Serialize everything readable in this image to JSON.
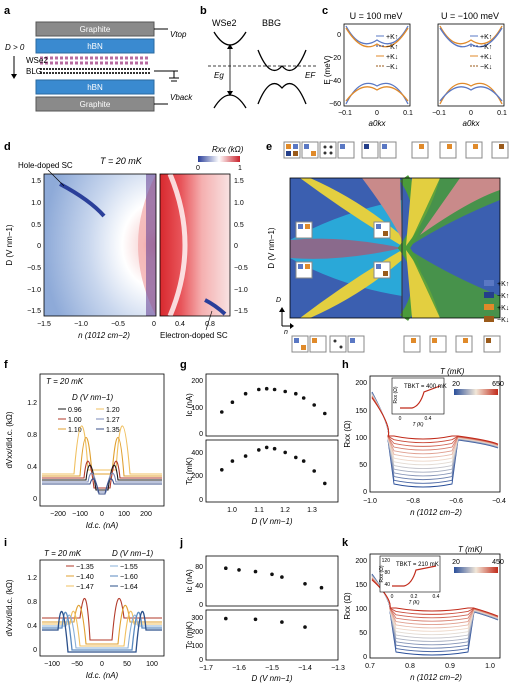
{
  "panel_letters": {
    "a": "a",
    "b": "b",
    "c": "c",
    "d": "d",
    "e": "e",
    "f": "f",
    "g": "g",
    "h": "h",
    "i": "i",
    "j": "j",
    "k": "k"
  },
  "panel_a": {
    "layers": [
      "Graphite",
      "hBN",
      "WSe2",
      "BLG",
      "hBN",
      "Graphite"
    ],
    "v_top": "Vtop",
    "v_back": "Vback",
    "d_label": "D > 0"
  },
  "panel_b": {
    "left": "WSe2",
    "right": "BBG",
    "eg": "Eg",
    "ef": "EF"
  },
  "panel_c": {
    "titles": [
      "U = 100 meV",
      "U = −100 meV"
    ],
    "ylabel": "E (meV)",
    "xlabel": "a0kx",
    "yticks": [
      "0",
      "−20",
      "−40",
      "−60"
    ],
    "xticks": [
      "−0.1",
      "0",
      "0.1"
    ],
    "legend": [
      "+K↑",
      "−K↑",
      "+K↓",
      "−K↓"
    ]
  },
  "panel_d": {
    "temperature": "T = 20 mK",
    "cbar_label": "Rxx (kΩ)",
    "cbar_ticks": [
      "0",
      "1"
    ],
    "ylabel": "D (V nm−1)",
    "xlabel": "n (1012 cm−2)",
    "yticks": [
      "1.5",
      "1.0",
      "0.5",
      "0",
      "−0.5",
      "−1.0",
      "−1.5"
    ],
    "xticks": [
      "−1.5",
      "−1.0",
      "−0.5",
      "0",
      "0.4",
      "0.8"
    ],
    "ann_hole": "Hole-doped SC",
    "ann_electron": "Electron-doped SC"
  },
  "panel_e": {
    "ylabel": "D (V nm−1)",
    "axis_d": "D",
    "axis_n": "n",
    "legend": [
      "+K↑",
      "−K↑",
      "+K↓",
      "−K↓"
    ]
  },
  "panel_f": {
    "temperature": "T = 20 mK",
    "legend_title": "D (V nm−1)",
    "legend": [
      "0.96",
      "1.00",
      "1.10",
      "1.20",
      "1.27",
      "1.35"
    ],
    "ylabel": "dVxx/dId.c. (kΩ)",
    "xlabel": "Id.c. (nA)",
    "yticks": [
      "1.2",
      "0.8",
      "0.4",
      "0"
    ],
    "xticks": [
      "−200",
      "−100",
      "0",
      "100",
      "200"
    ]
  },
  "panel_g": {
    "ylabel_top": "Ic (nA)",
    "ylabel_bottom": "Tc (mK)",
    "xlabel": "D (V nm−1)",
    "yticks_top": [
      "200",
      "100",
      "0"
    ],
    "yticks_bottom": [
      "400",
      "200",
      "0"
    ],
    "xticks": [
      "1.0",
      "1.1",
      "1.2",
      "1.3"
    ]
  },
  "panel_h": {
    "cbar_label": "T (mK)",
    "cbar_ticks": [
      "20",
      "650"
    ],
    "ylabel": "Rxx (Ω)",
    "xlabel": "n (1012 cm−2)",
    "yticks": [
      "200",
      "150",
      "100",
      "50",
      "0"
    ],
    "xticks": [
      "−1.0",
      "−0.8",
      "−0.6",
      "−0.4"
    ],
    "inset_text": "TBKT = 400 mK",
    "inset_ylabel": "Rxx (Ω)",
    "inset_xlabel": "T (K)",
    "inset_xticks": [
      "0",
      "0.4"
    ]
  },
  "panel_i": {
    "temperature": "T = 20 mK",
    "legend_title": "D (V nm−1)",
    "legend": [
      "−1.35",
      "−1.40",
      "−1.47",
      "−1.55",
      "−1.60",
      "−1.64"
    ],
    "ylabel": "dVxx/dId.c. (kΩ)",
    "xlabel": "Id.c. (nA)",
    "yticks": [
      "1.2",
      "0.8",
      "0.4",
      "0"
    ],
    "xticks": [
      "−100",
      "−50",
      "0",
      "50",
      "100"
    ]
  },
  "panel_j": {
    "ylabel_top": "Ic (nA)",
    "ylabel_bottom": "Tc (mK)",
    "xlabel": "D (V nm−1)",
    "yticks_top": [
      "80",
      "40",
      "0"
    ],
    "yticks_bottom": [
      "300",
      "200",
      "100",
      "0"
    ],
    "xticks": [
      "−1.7",
      "−1.6",
      "−1.5",
      "−1.4",
      "−1.3"
    ]
  },
  "panel_k": {
    "cbar_label": "T (mK)",
    "cbar_ticks": [
      "20",
      "450"
    ],
    "ylabel": "Rxx (Ω)",
    "xlabel": "n (1012 cm−2)",
    "yticks": [
      "200",
      "150",
      "100",
      "50",
      "0"
    ],
    "xticks": [
      "0.7",
      "0.8",
      "0.9",
      "1.0"
    ],
    "inset_text": "TBKT = 210 mK",
    "inset_ylabel": "Rxx (Ω)",
    "inset_xlabel": "T (K)",
    "inset_yticks": [
      "120",
      "80",
      "40"
    ],
    "inset_xticks": [
      "0",
      "0.2",
      "0.4"
    ]
  },
  "chart_data": [
    {
      "id": "g_top",
      "type": "scatter",
      "x": [
        0.96,
        1.0,
        1.05,
        1.1,
        1.13,
        1.16,
        1.2,
        1.24,
        1.27,
        1.31,
        1.35
      ],
      "y": [
        85,
        120,
        150,
        165,
        168,
        165,
        158,
        150,
        135,
        110,
        80
      ],
      "ylabel": "Ic (nA)",
      "xlabel": "D (V nm−1)",
      "ylim": [
        0,
        220
      ],
      "xlim": [
        0.9,
        1.4
      ]
    },
    {
      "id": "g_bottom",
      "type": "scatter",
      "x": [
        0.96,
        1.0,
        1.05,
        1.1,
        1.13,
        1.16,
        1.2,
        1.24,
        1.27,
        1.31,
        1.35
      ],
      "y": [
        260,
        330,
        370,
        420,
        440,
        430,
        400,
        360,
        330,
        250,
        150
      ],
      "ylabel": "Tc (mK)",
      "xlabel": "D (V nm−1)",
      "ylim": [
        0,
        500
      ],
      "xlim": [
        0.9,
        1.4
      ]
    },
    {
      "id": "j_top",
      "type": "scatter",
      "x": [
        -1.64,
        -1.6,
        -1.55,
        -1.5,
        -1.47,
        -1.4,
        -1.35
      ],
      "y": [
        68,
        65,
        62,
        57,
        52,
        40,
        33
      ],
      "ylabel": "Ic (nA)",
      "xlabel": "D (V nm−1)",
      "ylim": [
        0,
        90
      ],
      "xlim": [
        -1.7,
        -1.3
      ]
    },
    {
      "id": "j_bottom",
      "type": "scatter",
      "x": [
        -1.64,
        -1.55,
        -1.47,
        -1.4
      ],
      "y": [
        290,
        285,
        265,
        230
      ],
      "ylabel": "Tc (mK)",
      "xlabel": "D (V nm−1)",
      "ylim": [
        0,
        350
      ],
      "xlim": [
        -1.7,
        -1.3
      ]
    }
  ],
  "colors": {
    "kp_up": "#5a78c4",
    "km_up": "#243f8a",
    "kp_dn": "#e08a2a",
    "km_dn": "#9a5a1a",
    "phase_blue": "#3b5fb0",
    "phase_cyan": "#2aa8d8",
    "phase_yellow": "#e3cf40",
    "phase_green": "#4a9b3a",
    "phase_purple": "#8a6a8c",
    "phase_pink": "#c98a8a"
  }
}
